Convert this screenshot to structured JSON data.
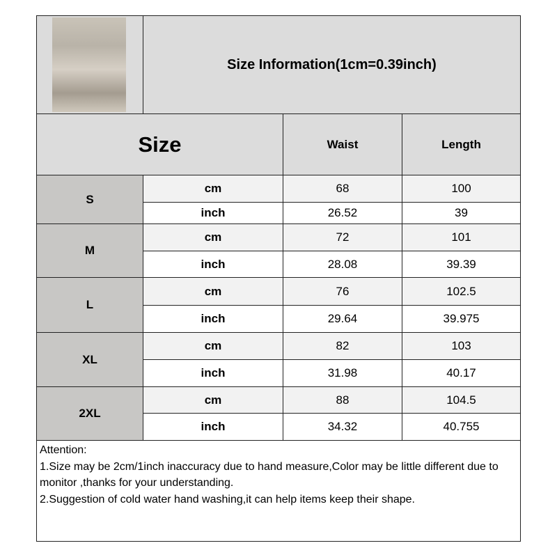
{
  "header": {
    "title": "Size Information(1cm=0.39inch)",
    "photo": "product-photo"
  },
  "columns": {
    "size": "Size",
    "waist": "Waist",
    "length": "Length"
  },
  "rows": [
    {
      "size": "S",
      "cm": {
        "unit": "cm",
        "waist": "68",
        "length": "100"
      },
      "inch": {
        "unit": "inch",
        "waist": "26.52",
        "length": "39"
      }
    },
    {
      "size": "M",
      "cm": {
        "unit": "cm",
        "waist": "72",
        "length": "101"
      },
      "inch": {
        "unit": "inch",
        "waist": "28.08",
        "length": "39.39"
      }
    },
    {
      "size": "L",
      "cm": {
        "unit": "cm",
        "waist": "76",
        "length": "102.5"
      },
      "inch": {
        "unit": "inch",
        "waist": "29.64",
        "length": "39.975"
      }
    },
    {
      "size": "XL",
      "cm": {
        "unit": "cm",
        "waist": "82",
        "length": "103"
      },
      "inch": {
        "unit": "inch",
        "waist": "31.98",
        "length": "40.17"
      }
    },
    {
      "size": "2XL",
      "cm": {
        "unit": "cm",
        "waist": "88",
        "length": "104.5"
      },
      "inch": {
        "unit": "inch",
        "waist": "34.32",
        "length": "40.755"
      }
    }
  ],
  "attention": {
    "title": "Attention:",
    "line1": "1.Size may be 2cm/1inch inaccuracy due to hand measure,Color may be little different due to monitor ,thanks for your understanding.",
    "line2": "2.Suggestion of cold water hand washing,it can help items keep their shape."
  }
}
